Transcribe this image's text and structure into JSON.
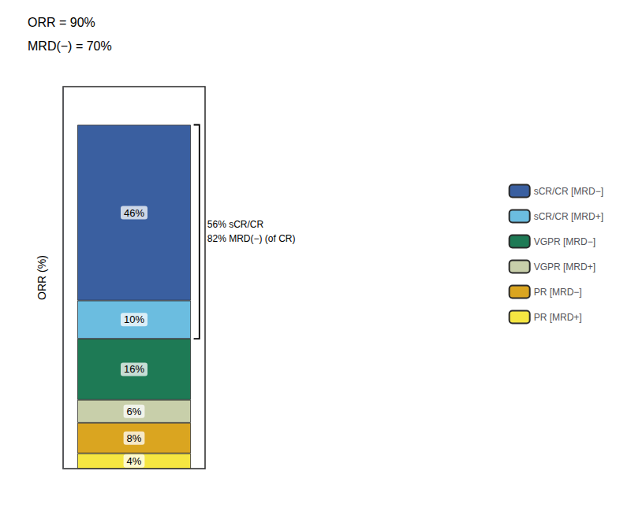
{
  "chart_data": {
    "type": "bar",
    "stacked": true,
    "title": "ORR = 90%",
    "subtitle": "MRD(−) = 70%",
    "ylabel": "ORR (%)",
    "categories": [
      null
    ],
    "series": [
      {
        "name": "PR [MRD+]",
        "color": "#f5e642",
        "values": [
          4
        ],
        "value_labels": [
          "4%"
        ]
      },
      {
        "name": "PR [MRD−]",
        "color": "#daa520",
        "values": [
          8
        ],
        "value_labels": [
          "8%"
        ]
      },
      {
        "name": "VGPR [MRD+]",
        "color": "#c8cfaa",
        "values": [
          6
        ],
        "value_labels": [
          "6%"
        ]
      },
      {
        "name": "VGPR [MRD−]",
        "color": "#1e7a55",
        "values": [
          16
        ],
        "value_labels": [
          "16%"
        ]
      },
      {
        "name": "sCR/CR [MRD+]",
        "color": "#6bbde0",
        "values": [
          10
        ],
        "value_labels": [
          "10%"
        ]
      },
      {
        "name": "sCR/CR [MRD−]",
        "color": "#3a5fa0",
        "values": [
          46
        ],
        "value_labels": [
          "46%"
        ]
      }
    ],
    "ylim": [
      0,
      100
    ],
    "tick_labels": false,
    "grid": false,
    "legend": "right",
    "data_labels": true,
    "annotations": [
      {
        "text": "56% sCR/CR\n82% MRD(−) (of CR)",
        "y_from": 34,
        "y_to": 90
      }
    ]
  }
}
